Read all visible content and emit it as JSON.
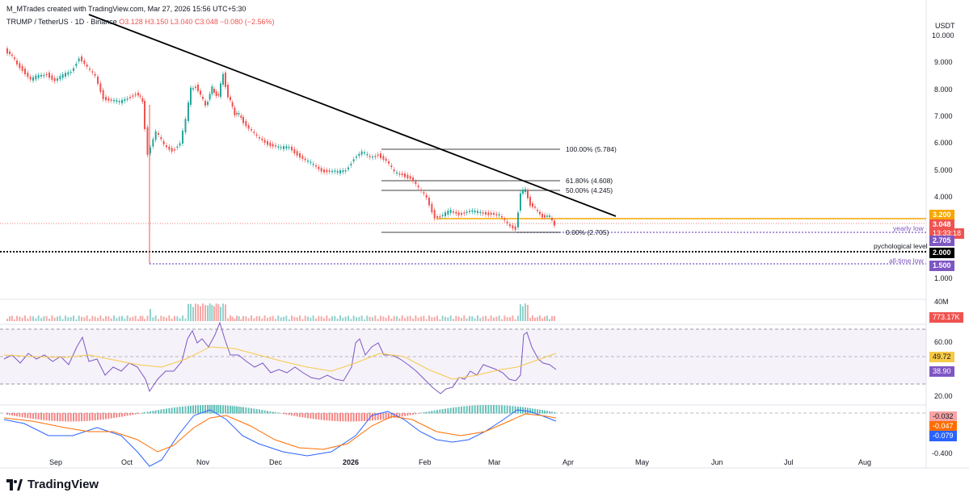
{
  "watermark": "M_MTrades created with TradingView.com, Mar 27, 2026 15:56 UTC+5:30",
  "symbol_line": {
    "pair": "TRUMP / TetherUS · 1D · Binance",
    "open": "O3.128",
    "high": "H3.150",
    "low": "L3.040",
    "close": "C3.048",
    "change": "−0.080 (−2.56%)"
  },
  "currency_label": "USDT",
  "price_axis": [
    "10.000",
    "9.000",
    "8.000",
    "7.000",
    "6.000",
    "5.000",
    "4.000",
    "1.000"
  ],
  "rsi_axis": [
    "60.00",
    "20.00"
  ],
  "macd_axis": [
    "-0.400"
  ],
  "volume_axis": "40M",
  "time_axis": [
    "Sep",
    "Oct",
    "Nov",
    "Dec",
    "2026",
    "Feb",
    "Mar",
    "Apr",
    "May",
    "Jun",
    "Jul",
    "Aug"
  ],
  "fib_levels": [
    {
      "label": "100.00% (5.784)"
    },
    {
      "label": "61.80% (4.608)"
    },
    {
      "label": "50.00% (4.245)"
    },
    {
      "label": "0.00% (2.705)"
    }
  ],
  "annotations": {
    "yearly_low": "yearly low",
    "psych_level": "pychological level",
    "all_time_low": "all-time low"
  },
  "badges": {
    "resistance": "3.200",
    "last_price": "3.048",
    "countdown": "13:33:18",
    "yearly_low": "2.705",
    "psych": "2.000",
    "all_time_low": "1.500",
    "volume": "773.17K",
    "rsi_ma": "49.72",
    "rsi": "38.90",
    "macd_hist": "-0.032",
    "macd_signal": "-0.047",
    "macd_line": "-0.079"
  },
  "colors": {
    "up": "#26a69a",
    "down": "#ef5350",
    "resistance": "#f7a600",
    "purple": "#7e57c2",
    "black": "#000000",
    "macd_blue": "#2962ff",
    "macd_orange": "#ff6d00",
    "rsi_ma": "#f7c948"
  },
  "brand": "TradingView"
}
